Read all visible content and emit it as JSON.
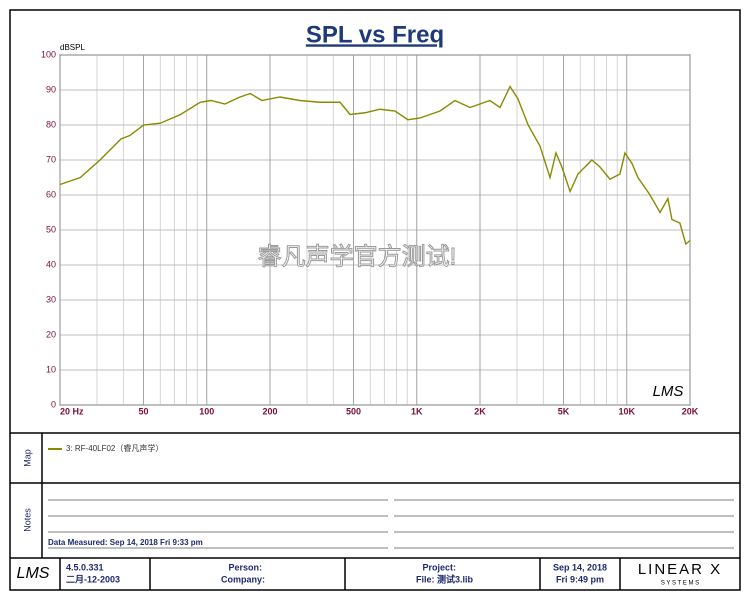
{
  "chart_data": {
    "type": "line",
    "title": "SPL vs Freq",
    "ylabel": "dBSPL",
    "x": [
      20,
      25,
      31,
      39,
      43,
      50,
      60,
      75,
      93,
      105,
      122,
      144,
      161,
      183,
      223,
      278,
      346,
      431,
      481,
      567,
      668,
      787,
      908,
      1036,
      1290,
      1520,
      1790,
      2230,
      2490,
      2780,
      3030,
      3390,
      3860,
      4310,
      4600,
      4910,
      5370,
      5860,
      6820,
      7450,
      8320,
      9280,
      9800,
      10590,
      11300,
      12900,
      14400,
      15700,
      16400,
      17900,
      19100,
      20000
    ],
    "series": [
      {
        "name": "3: RF-40LF02（睿凡声学）",
        "color": "#8a8a00",
        "values": [
          63,
          65,
          70,
          76,
          77,
          80,
          80.5,
          83,
          86.5,
          87,
          86,
          88,
          89,
          87,
          88,
          87,
          86.5,
          86.5,
          83,
          83.5,
          84.5,
          84,
          81.5,
          82,
          84,
          87,
          85,
          87,
          85,
          91,
          87.5,
          80,
          74,
          65,
          72,
          68,
          61,
          66,
          70,
          68,
          64.5,
          66,
          72,
          69,
          65,
          60,
          55,
          59,
          53,
          52,
          46,
          47
        ]
      }
    ],
    "xlim": [
      20,
      20000
    ],
    "ylim": [
      0,
      100
    ],
    "log_x": true,
    "grid": true,
    "xticks": [
      {
        "value": 20,
        "label": "20  Hz"
      },
      50,
      100,
      200,
      500,
      {
        "value": 1000,
        "label": "1K"
      },
      {
        "value": 2000,
        "label": "2K"
      },
      {
        "value": 5000,
        "label": "5K"
      },
      {
        "value": 10000,
        "label": "10K"
      },
      {
        "value": 20000,
        "label": "20K"
      }
    ],
    "xminor": [
      30,
      40,
      60,
      70,
      80,
      90,
      300,
      400,
      600,
      700,
      800,
      900,
      3000,
      4000,
      6000,
      7000,
      8000,
      9000
    ],
    "yticks": [
      0,
      10,
      20,
      30,
      40,
      50,
      60,
      70,
      80,
      90,
      100
    ],
    "watermark": "睿凡声学官方测试!",
    "logo": "LMS"
  },
  "map": {
    "label": "Map"
  },
  "notes": {
    "label": "Notes",
    "measured": "Data Measured: Sep 14, 2018  Fri  9:33 pm"
  },
  "footer": {
    "logo": "LMS",
    "version": "4.5.0.331",
    "version_date": "二月-12-2003",
    "person": "Person:",
    "company": "Company:",
    "project": "Project:",
    "file": "File: 测试3.lib",
    "date": "Sep 14, 2018",
    "time": "Fri  9:49 pm",
    "brand": "LINEAR X",
    "brand_sub": "S Y S T E M S"
  }
}
